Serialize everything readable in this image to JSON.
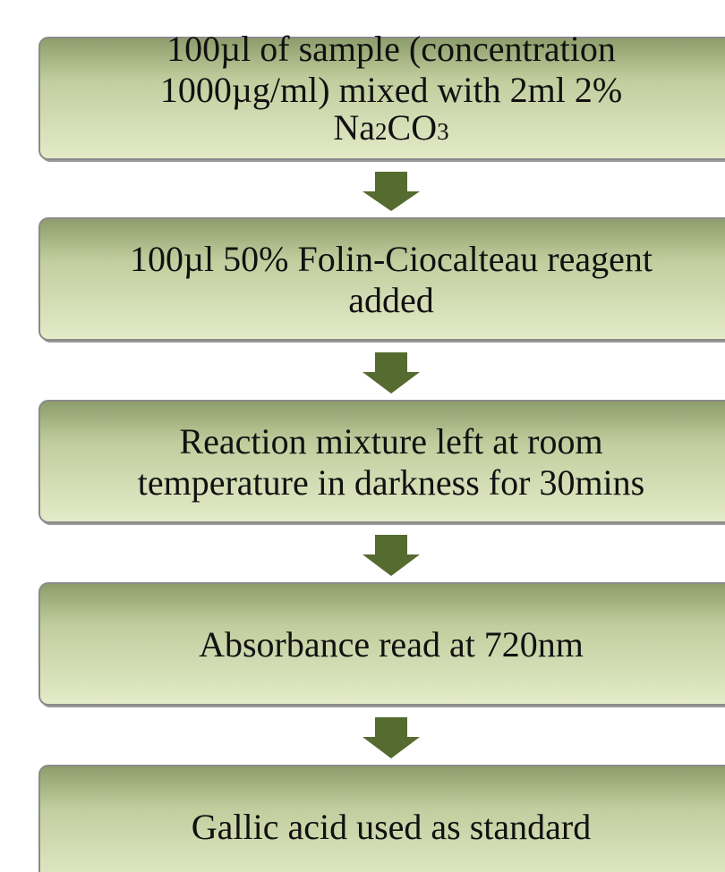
{
  "nodes": [
    {
      "lines": [
        "100µl of sample (concentration",
        "1000µg/ml) mixed with 2ml 2%"
      ],
      "formula": [
        "Na",
        "2",
        "CO",
        "3"
      ]
    },
    {
      "lines": [
        "100µl 50% Folin-Ciocalteau reagent",
        "added"
      ]
    },
    {
      "lines": [
        "Reaction mixture left at room",
        "temperature in darkness for 30mins"
      ]
    },
    {
      "lines": [
        "Absorbance read at 720nm"
      ]
    },
    {
      "lines": [
        "Gallic acid used as standard"
      ]
    }
  ]
}
